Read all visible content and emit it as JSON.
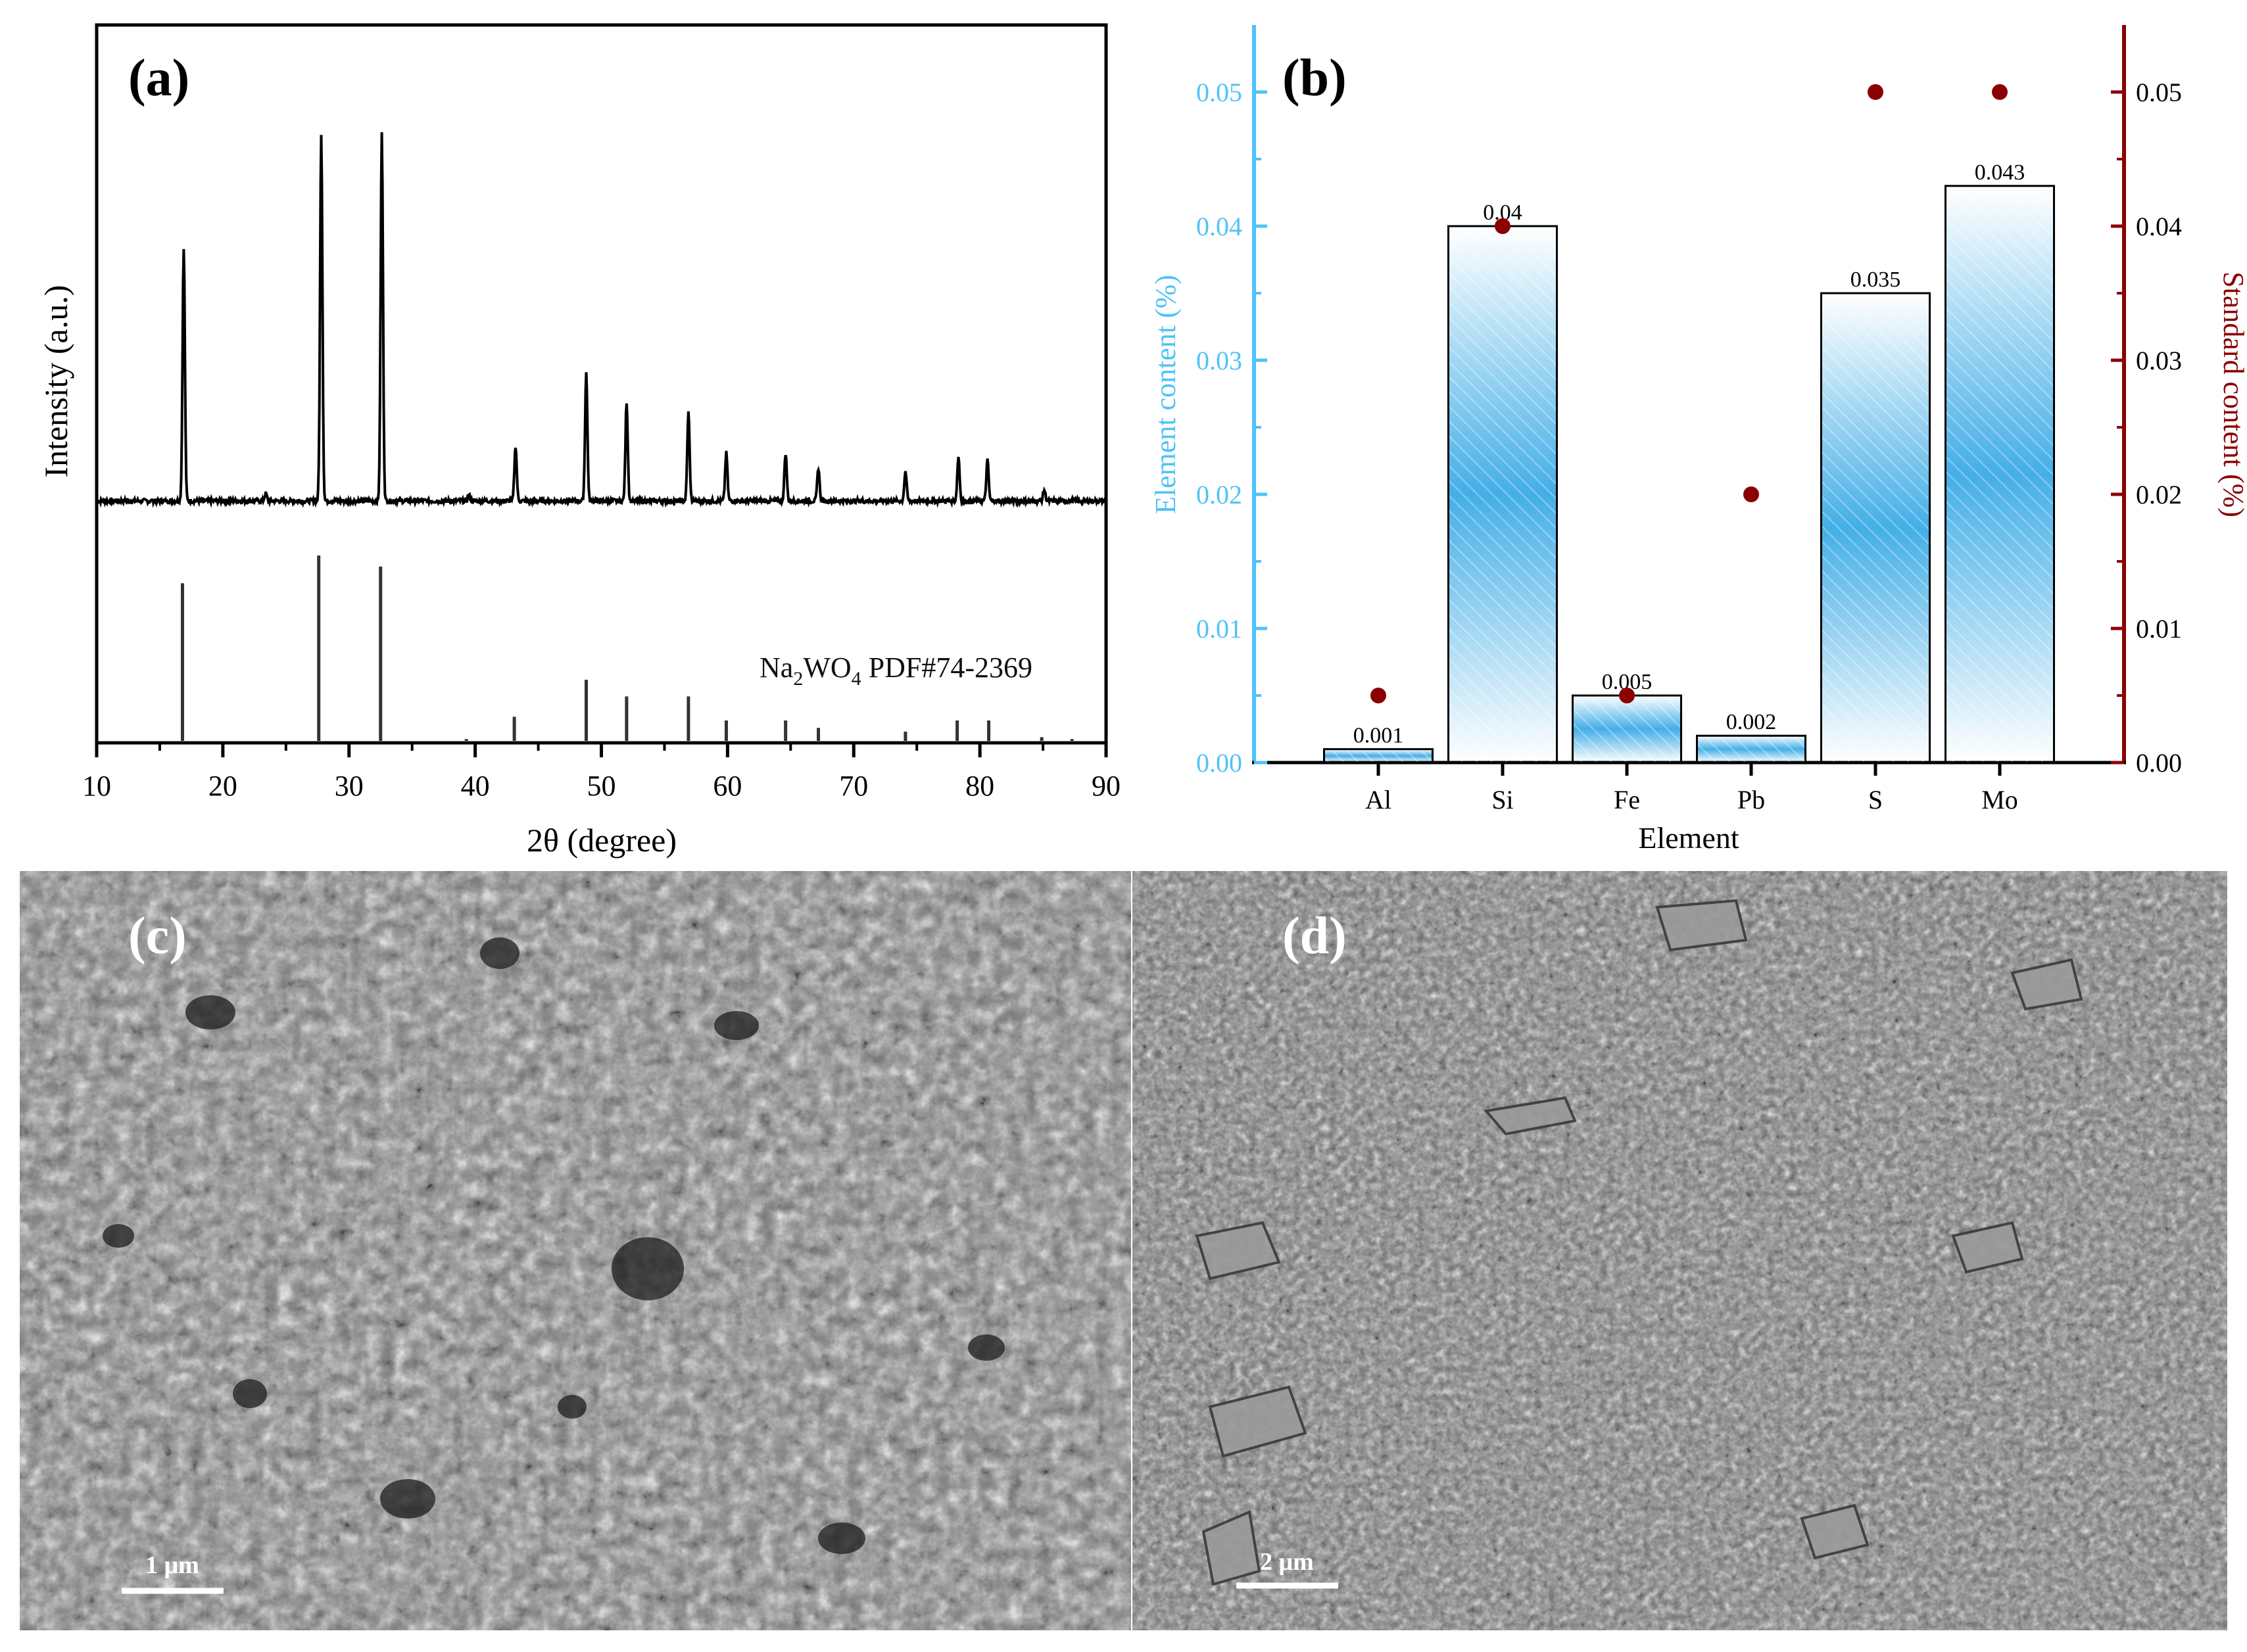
{
  "panel_labels": {
    "a": "(a)",
    "b": "(b)",
    "c": "(c)",
    "d": "(d)"
  },
  "chart_data": [
    {
      "type": "line",
      "panel": "(a)",
      "xlabel": "2θ (degree)",
      "ylabel": "Intensity (a.u.)",
      "xlim": [
        10,
        90
      ],
      "xticks": [
        "10",
        "20",
        "30",
        "40",
        "50",
        "60",
        "70",
        "80",
        "90"
      ],
      "reference_label": {
        "prefix": "Na",
        "sub1": "2",
        "mid": "WO",
        "sub2": "4",
        "suffix": " PDF#74-2369"
      },
      "measured_peaks": {
        "x": [
          16.9,
          23.4,
          27.8,
          32.6,
          39.5,
          43.2,
          48.8,
          52.0,
          56.9,
          59.9,
          64.6,
          67.2,
          74.1,
          78.3,
          80.6,
          85.1
        ],
        "relative_intensity": [
          0.69,
          0.02,
          1.0,
          1.0,
          0.015,
          0.15,
          0.35,
          0.27,
          0.24,
          0.13,
          0.13,
          0.09,
          0.08,
          0.12,
          0.11,
          0.03
        ]
      },
      "reference_peaks": {
        "x": [
          16.8,
          27.6,
          32.5,
          39.3,
          43.1,
          48.8,
          52.0,
          56.9,
          59.9,
          64.6,
          67.2,
          74.1,
          78.2,
          80.7,
          84.9,
          87.3
        ],
        "relative_intensity": [
          0.85,
          1.0,
          0.94,
          0.01,
          0.13,
          0.33,
          0.24,
          0.24,
          0.11,
          0.11,
          0.07,
          0.05,
          0.11,
          0.11,
          0.02,
          0.01
        ]
      },
      "grid": false,
      "colors": {
        "measured": "#000000",
        "reference": "#333333"
      }
    },
    {
      "type": "bar",
      "panel": "(b)",
      "xlabel": "Element",
      "ylabel": "Element content (%)",
      "ylabel_right": "Standard content (%)",
      "categories": [
        "Al",
        "Si",
        "Fe",
        "Pb",
        "S",
        "Mo"
      ],
      "values": [
        0.001,
        0.04,
        0.005,
        0.002,
        0.035,
        0.043
      ],
      "value_labels": [
        "0.001",
        "0.04",
        "0.005",
        "0.002",
        "0.035",
        "0.043"
      ],
      "standard_values": [
        0.005,
        0.04,
        0.005,
        0.02,
        0.05,
        0.05
      ],
      "ylim": [
        0,
        0.055
      ],
      "yticks": [
        "0.00",
        "0.01",
        "0.02",
        "0.03",
        "0.04",
        "0.05"
      ],
      "grid": false,
      "colors": {
        "left_axis": "#4fc3f7",
        "bar_fill": "#3aaae6",
        "right_axis": "#8b0000",
        "standard_points": "#8b0000"
      }
    }
  ],
  "sem": {
    "c": {
      "scale_label": "1 μm"
    },
    "d": {
      "scale_label": "2 μm"
    }
  }
}
